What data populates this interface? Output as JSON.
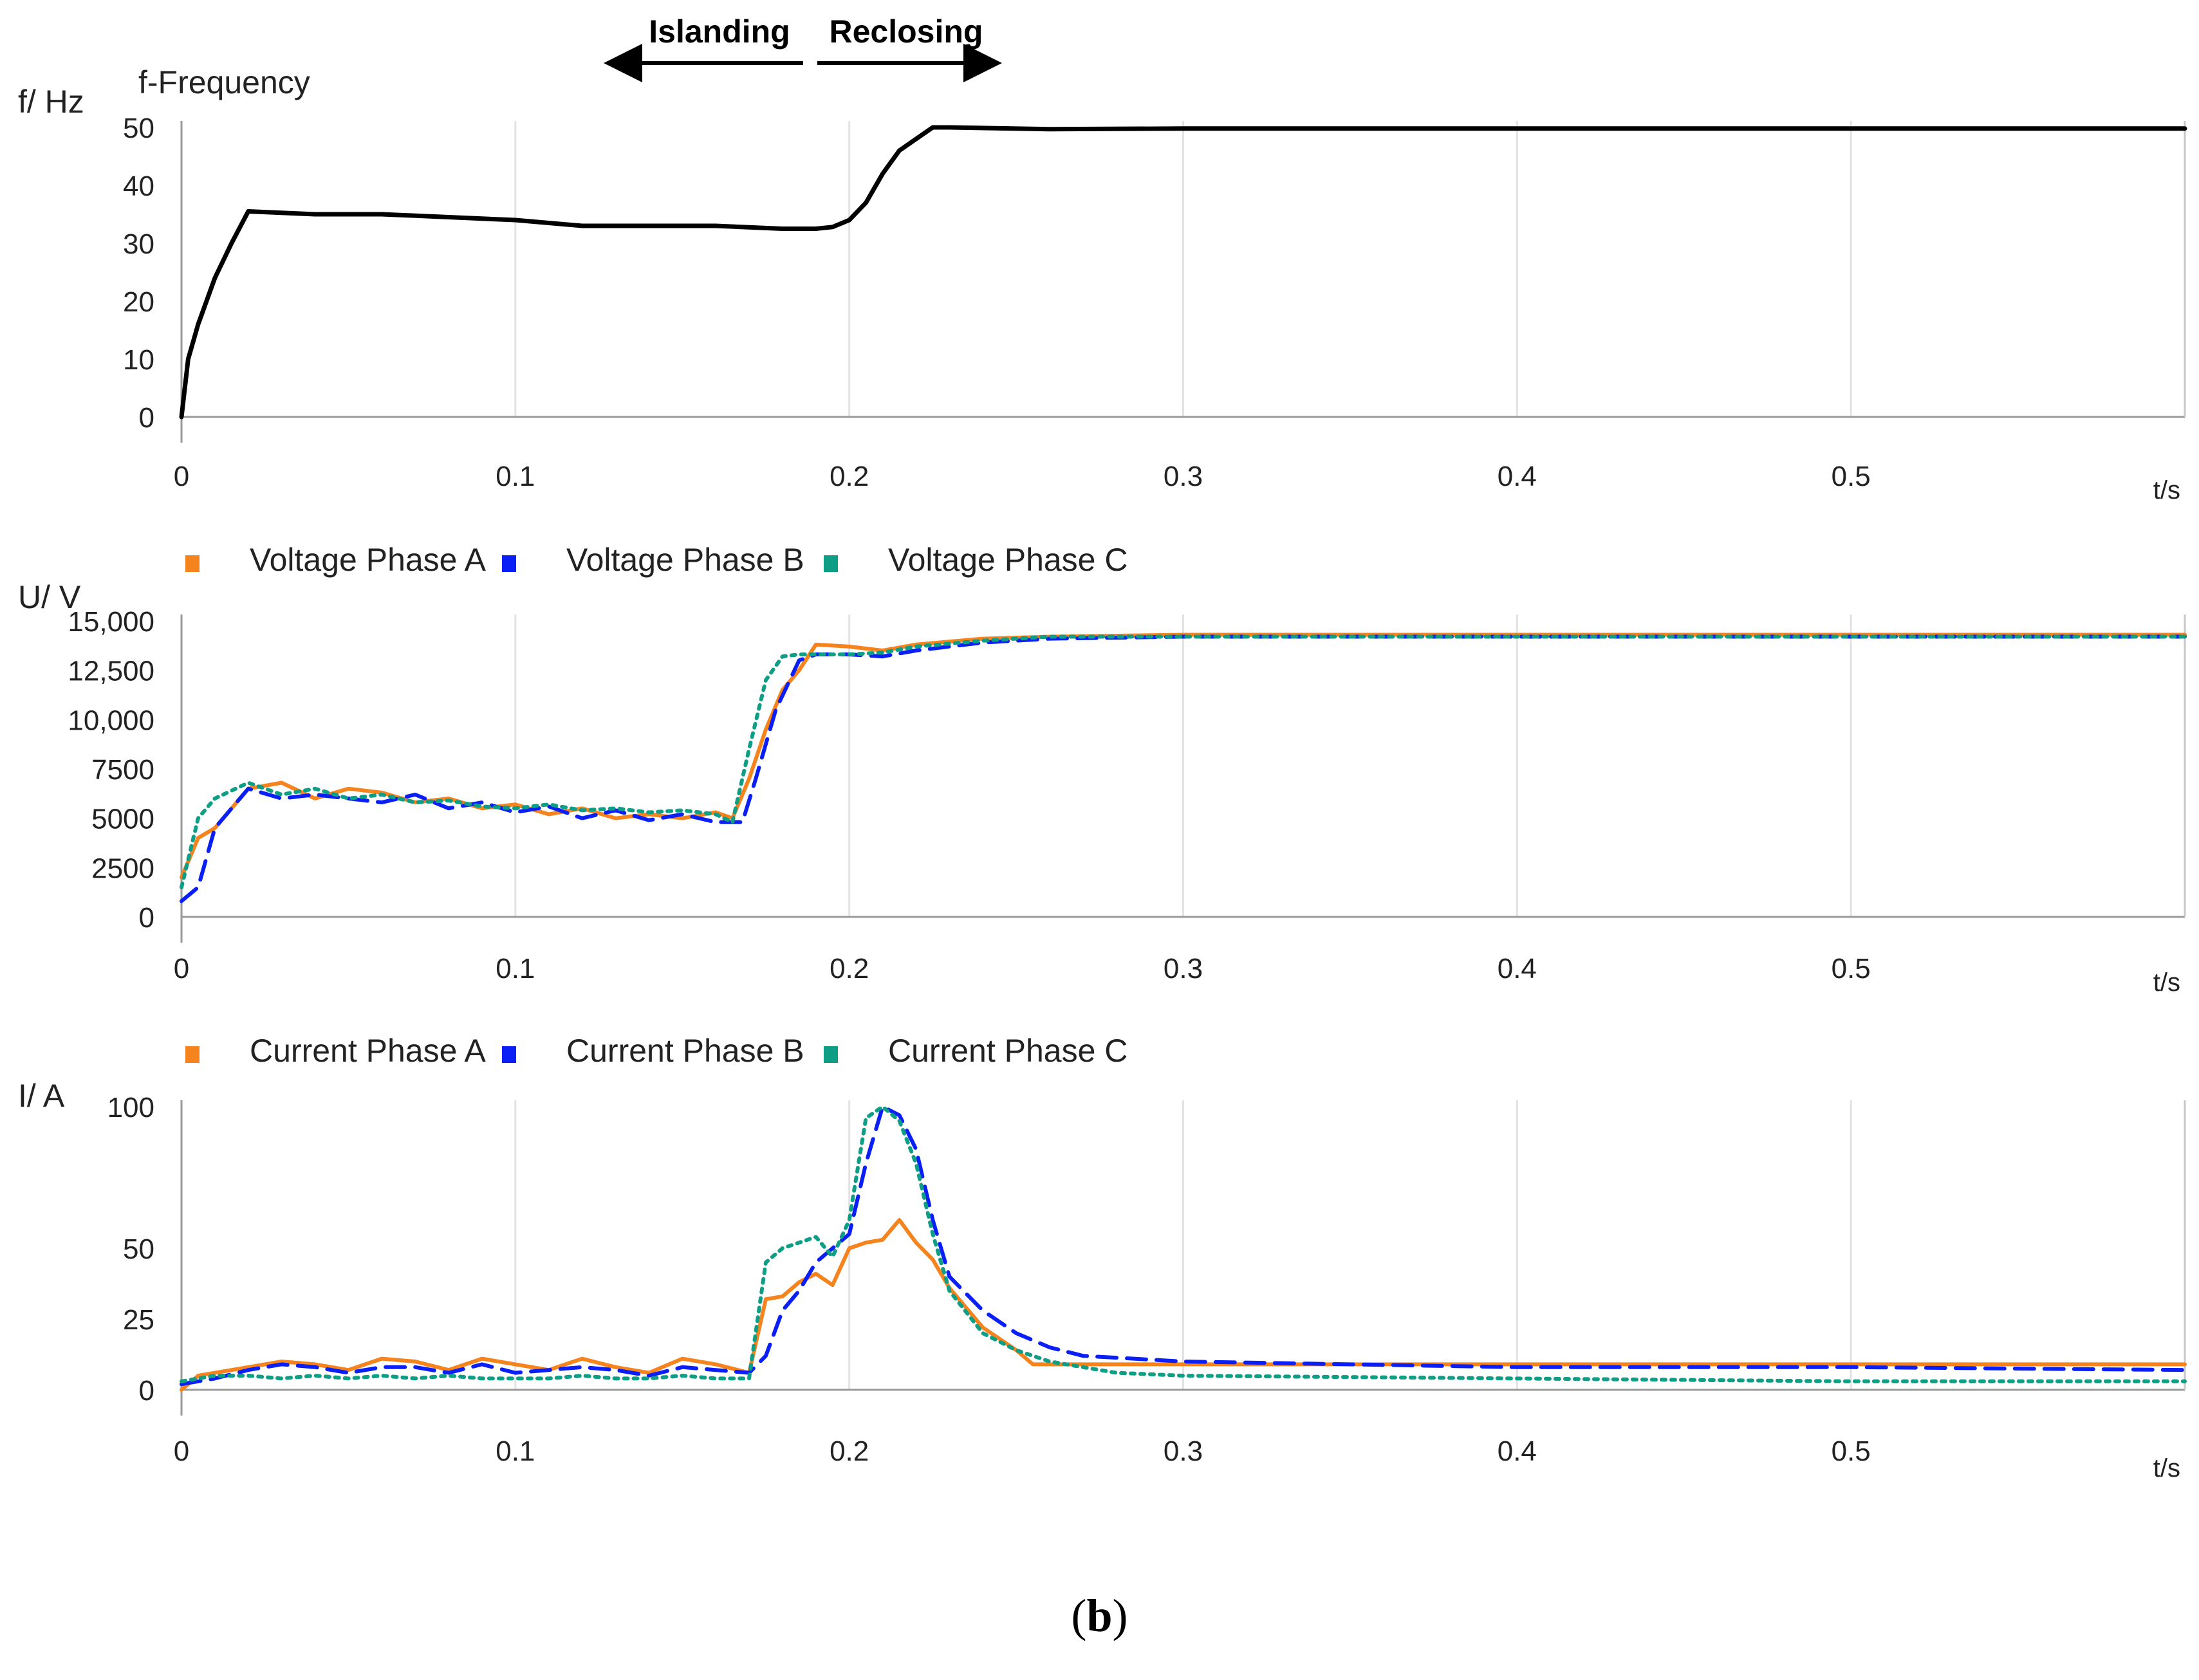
{
  "figure": {
    "caption_open": "(",
    "caption_letter": "b",
    "caption_close": ")"
  },
  "annotations": {
    "islanding": "Islanding",
    "reclosing": "Reclosing"
  },
  "chart_data": [
    {
      "type": "line",
      "id": "freq",
      "title": "f-Frequency",
      "ylabel": "f/ Hz",
      "xlabel": "t/s",
      "xlim": [
        0,
        0.6
      ],
      "ylim": [
        0,
        50
      ],
      "xticks": [
        0,
        0.1,
        0.2,
        0.3,
        0.4,
        0.5
      ],
      "xtick_labels": [
        "0",
        "0.1",
        "0.2",
        "0.3",
        "0.4",
        "0.5"
      ],
      "yticks": [
        0,
        10,
        20,
        30,
        40,
        50
      ],
      "ytick_labels": [
        "0",
        "10",
        "20",
        "30",
        "40",
        "50"
      ],
      "series": [
        {
          "name": "f-Frequency",
          "color": "#000000",
          "dash": "solid",
          "x": [
            0,
            0.002,
            0.005,
            0.01,
            0.015,
            0.02,
            0.04,
            0.06,
            0.08,
            0.1,
            0.12,
            0.14,
            0.16,
            0.18,
            0.19,
            0.195,
            0.2,
            0.205,
            0.21,
            0.215,
            0.22,
            0.225,
            0.23,
            0.26,
            0.3,
            0.4,
            0.5,
            0.6
          ],
          "y": [
            0,
            10,
            16,
            24,
            30,
            35.5,
            35,
            35,
            34.5,
            34,
            33,
            33,
            33,
            32.5,
            32.5,
            32.8,
            34,
            37,
            42,
            46,
            48,
            50,
            50,
            49.7,
            49.8,
            49.8,
            49.8,
            49.8
          ]
        }
      ]
    },
    {
      "type": "line",
      "id": "voltage",
      "ylabel": "U/ V",
      "xlabel": "t/s",
      "xlim": [
        0,
        0.6
      ],
      "ylim": [
        0,
        15000
      ],
      "xticks": [
        0,
        0.1,
        0.2,
        0.3,
        0.4,
        0.5
      ],
      "xtick_labels": [
        "0",
        "0.1",
        "0.2",
        "0.3",
        "0.4",
        "0.5"
      ],
      "yticks": [
        0,
        2500,
        5000,
        7500,
        10000,
        12500,
        15000
      ],
      "ytick_labels": [
        "0",
        "2500",
        "5000",
        "7500",
        "10,000",
        "12,500",
        "15,000"
      ],
      "series": [
        {
          "name": "Voltage Phase A",
          "color": "#F5841F",
          "dash": "solid",
          "x": [
            0,
            0.005,
            0.01,
            0.02,
            0.03,
            0.04,
            0.05,
            0.06,
            0.07,
            0.08,
            0.09,
            0.1,
            0.11,
            0.12,
            0.13,
            0.14,
            0.15,
            0.16,
            0.165,
            0.17,
            0.175,
            0.18,
            0.185,
            0.19,
            0.2,
            0.21,
            0.22,
            0.24,
            0.26,
            0.3,
            0.4,
            0.5,
            0.6
          ],
          "y": [
            2000,
            4000,
            4500,
            6500,
            6800,
            6000,
            6500,
            6300,
            5800,
            6000,
            5500,
            5700,
            5200,
            5500,
            5000,
            5200,
            5000,
            5300,
            5000,
            7000,
            9500,
            11500,
            12500,
            13800,
            13700,
            13500,
            13800,
            14100,
            14200,
            14300,
            14300,
            14300,
            14300
          ]
        },
        {
          "name": "Voltage Phase B",
          "color": "#0A1FF5",
          "dash": "dashed",
          "x": [
            0,
            0.005,
            0.01,
            0.02,
            0.03,
            0.04,
            0.05,
            0.06,
            0.07,
            0.08,
            0.09,
            0.1,
            0.11,
            0.12,
            0.13,
            0.14,
            0.15,
            0.16,
            0.168,
            0.172,
            0.178,
            0.185,
            0.19,
            0.2,
            0.21,
            0.22,
            0.24,
            0.26,
            0.3,
            0.4,
            0.5,
            0.6
          ],
          "y": [
            800,
            1500,
            4500,
            6500,
            6000,
            6200,
            6000,
            5800,
            6200,
            5500,
            5800,
            5300,
            5600,
            5000,
            5400,
            4900,
            5200,
            4800,
            4800,
            7000,
            10500,
            13000,
            13300,
            13300,
            13200,
            13500,
            13900,
            14100,
            14200,
            14200,
            14200,
            14200
          ]
        },
        {
          "name": "Voltage Phase C",
          "color": "#0E9E86",
          "dash": "dotted",
          "x": [
            0,
            0.005,
            0.01,
            0.02,
            0.03,
            0.04,
            0.05,
            0.06,
            0.07,
            0.08,
            0.09,
            0.1,
            0.11,
            0.12,
            0.13,
            0.14,
            0.15,
            0.16,
            0.165,
            0.17,
            0.175,
            0.18,
            0.185,
            0.19,
            0.2,
            0.21,
            0.22,
            0.24,
            0.26,
            0.3,
            0.4,
            0.5,
            0.6
          ],
          "y": [
            1500,
            5000,
            6000,
            6800,
            6200,
            6500,
            6000,
            6200,
            5800,
            5900,
            5600,
            5500,
            5700,
            5400,
            5500,
            5300,
            5400,
            5200,
            4800,
            8500,
            12000,
            13200,
            13300,
            13300,
            13300,
            13400,
            13700,
            14000,
            14200,
            14200,
            14200,
            14200,
            14200
          ]
        }
      ]
    },
    {
      "type": "line",
      "id": "current",
      "ylabel": "I/ A",
      "xlabel": "t/s",
      "xlim": [
        0,
        0.6
      ],
      "ylim": [
        0,
        100
      ],
      "xticks": [
        0,
        0.1,
        0.2,
        0.3,
        0.4,
        0.5
      ],
      "xtick_labels": [
        "0",
        "0.1",
        "0.2",
        "0.3",
        "0.4",
        "0.5"
      ],
      "yticks": [
        0,
        25,
        50,
        75,
        100
      ],
      "ytick_labels": [
        "0",
        "25",
        "50",
        "",
        "100"
      ],
      "series": [
        {
          "name": "Current Phase A",
          "color": "#F5841F",
          "dash": "solid",
          "x": [
            0,
            0.005,
            0.01,
            0.02,
            0.03,
            0.04,
            0.05,
            0.06,
            0.07,
            0.08,
            0.09,
            0.1,
            0.11,
            0.12,
            0.13,
            0.14,
            0.15,
            0.16,
            0.17,
            0.175,
            0.18,
            0.185,
            0.19,
            0.195,
            0.2,
            0.205,
            0.21,
            0.215,
            0.22,
            0.225,
            0.23,
            0.24,
            0.25,
            0.255,
            0.28,
            0.3,
            0.4,
            0.5,
            0.6
          ],
          "y": [
            0,
            5,
            6,
            8,
            10,
            9,
            7,
            11,
            10,
            7,
            11,
            9,
            7,
            11,
            8,
            6,
            11,
            9,
            6,
            32,
            33,
            38,
            41,
            37,
            50,
            52,
            53,
            60,
            52,
            46,
            36,
            22,
            14,
            9,
            9,
            9,
            9,
            9,
            9
          ]
        },
        {
          "name": "Current Phase B",
          "color": "#0A1FF5",
          "dash": "dashed",
          "x": [
            0,
            0.005,
            0.01,
            0.02,
            0.03,
            0.04,
            0.05,
            0.06,
            0.07,
            0.08,
            0.09,
            0.1,
            0.11,
            0.12,
            0.13,
            0.14,
            0.15,
            0.16,
            0.17,
            0.175,
            0.18,
            0.185,
            0.19,
            0.195,
            0.2,
            0.205,
            0.21,
            0.215,
            0.22,
            0.225,
            0.23,
            0.24,
            0.25,
            0.26,
            0.27,
            0.3,
            0.4,
            0.5,
            0.6
          ],
          "y": [
            2,
            3,
            4,
            7,
            9,
            8,
            6,
            8,
            8,
            6,
            9,
            6,
            7,
            8,
            7,
            5,
            8,
            7,
            6,
            12,
            28,
            35,
            45,
            50,
            55,
            80,
            100,
            97,
            85,
            60,
            40,
            28,
            20,
            15,
            12,
            10,
            8,
            8,
            7
          ]
        },
        {
          "name": "Current Phase C",
          "color": "#0E9E86",
          "dash": "dotted",
          "x": [
            0,
            0.005,
            0.01,
            0.02,
            0.03,
            0.04,
            0.05,
            0.06,
            0.07,
            0.08,
            0.09,
            0.1,
            0.11,
            0.12,
            0.13,
            0.14,
            0.15,
            0.16,
            0.17,
            0.175,
            0.18,
            0.185,
            0.19,
            0.195,
            0.2,
            0.205,
            0.21,
            0.215,
            0.22,
            0.225,
            0.23,
            0.24,
            0.25,
            0.26,
            0.27,
            0.28,
            0.3,
            0.4,
            0.5,
            0.6
          ],
          "y": [
            3,
            4,
            5,
            5,
            4,
            5,
            4,
            5,
            4,
            5,
            4,
            4,
            4,
            5,
            4,
            4,
            5,
            4,
            4,
            45,
            50,
            52,
            54,
            47,
            60,
            96,
            100,
            95,
            80,
            55,
            35,
            20,
            14,
            10,
            8,
            6,
            5,
            4,
            3,
            3
          ]
        }
      ]
    }
  ]
}
